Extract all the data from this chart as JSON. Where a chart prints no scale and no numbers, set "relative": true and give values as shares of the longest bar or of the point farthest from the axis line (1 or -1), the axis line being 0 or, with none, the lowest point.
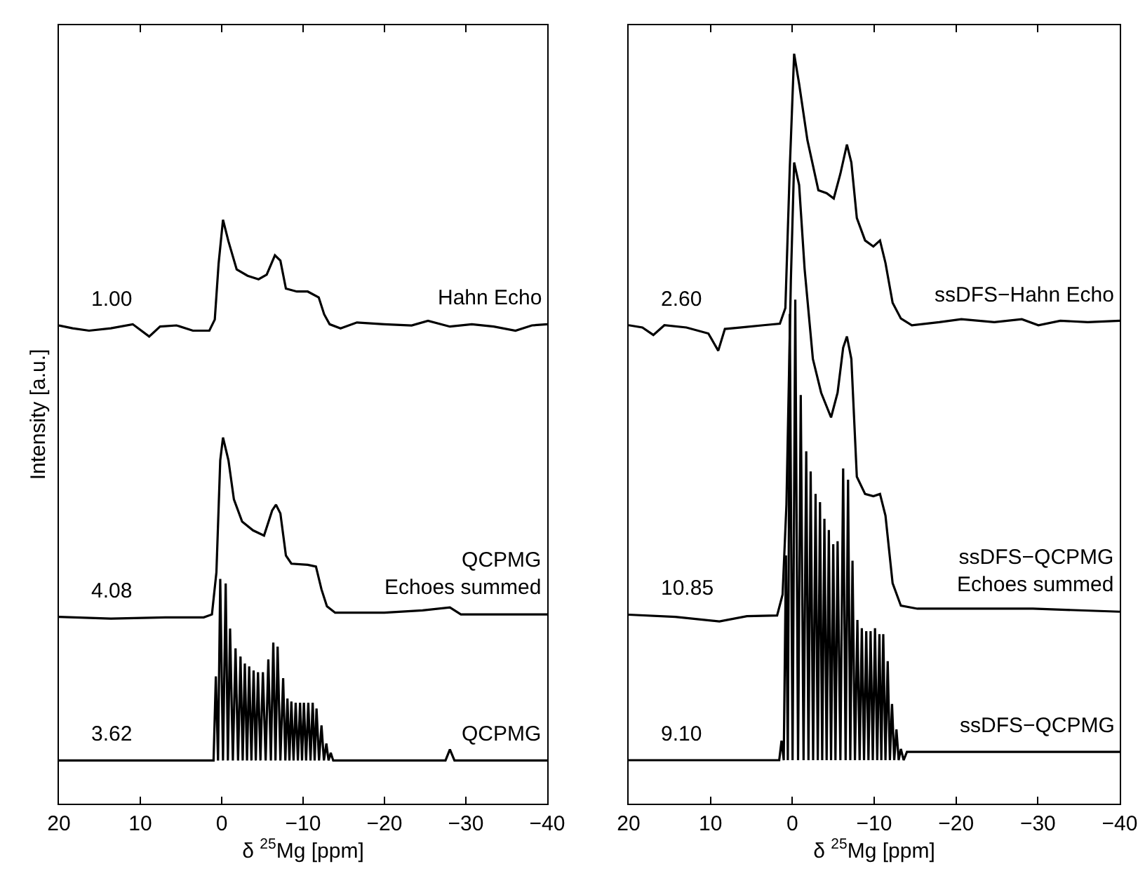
{
  "chart_data": [
    {
      "type": "line",
      "relative": true,
      "xlabel": "δ $^{25}$Mg [ppm]",
      "ylabel": "Intensity [a.u.]",
      "xlim": [
        20,
        -40
      ],
      "xticks": [
        20,
        10,
        0,
        {
          "value": -10,
          "label": "−10"
        },
        {
          "value": -20,
          "label": "−20"
        },
        {
          "value": -30,
          "label": "−30"
        },
        {
          "value": -40,
          "label": "−40"
        }
      ],
      "annotations": [
        "1.00",
        "4.08",
        "3.62"
      ],
      "series": [
        {
          "name": "Hahn Echo",
          "color": "#000000",
          "x": [
            20,
            18.32,
            16.3,
            13.62,
            10.93,
            8.91,
            7.57,
            5.55,
            3.54,
            1.52,
            0.85,
            0.38,
            -0.16,
            -0.83,
            -1.84,
            -3.18,
            -4.53,
            -5.53,
            -6.54,
            -7.21,
            -7.89,
            -9.23,
            -10.57,
            -11.92,
            -12.59,
            -13.26,
            -14.6,
            -16.62,
            -19.98,
            -23.34,
            -25.35,
            -28.04,
            -30.73,
            -33.42,
            -36.1,
            -38.12,
            -40
          ],
          "values": [
            0.819,
            0.814,
            0.81,
            0.814,
            0.821,
            0.8,
            0.817,
            0.819,
            0.81,
            0.81,
            0.829,
            0.925,
            1.0,
            0.963,
            0.915,
            0.904,
            0.898,
            0.906,
            0.939,
            0.93,
            0.882,
            0.877,
            0.877,
            0.867,
            0.838,
            0.821,
            0.814,
            0.824,
            0.821,
            0.819,
            0.827,
            0.817,
            0.821,
            0.817,
            0.81,
            0.819,
            0.821
          ]
        },
        {
          "name": "QCPMG\nEchoes summed",
          "color": "#000000",
          "x": [
            20,
            13.62,
            6.91,
            2.21,
            1.2,
            0.65,
            0.18,
            -0.16,
            -0.83,
            -1.5,
            -2.51,
            -3.85,
            -5.2,
            -6.2,
            -6.67,
            -7.21,
            -7.89,
            -8.56,
            -10.57,
            -11.58,
            -12.26,
            -12.93,
            -13.94,
            -19.98,
            -24.68,
            -28.04,
            -29.39,
            -33.42,
            -40
          ],
          "values": [
            0.32,
            0.317,
            0.319,
            0.319,
            0.324,
            0.396,
            0.588,
            0.627,
            0.588,
            0.521,
            0.483,
            0.468,
            0.459,
            0.502,
            0.512,
            0.497,
            0.425,
            0.411,
            0.409,
            0.406,
            0.367,
            0.338,
            0.327,
            0.327,
            0.331,
            0.336,
            0.324,
            0.324,
            0.324
          ]
        },
        {
          "name": "QCPMG",
          "color": "#000000",
          "x": [
            20,
            1.0,
            0.72,
            0.45,
            0.18,
            -0.16,
            -0.49,
            -0.76,
            -1.03,
            -1.37,
            -1.7,
            -2.01,
            -2.31,
            -2.58,
            -2.84,
            -3.11,
            -3.38,
            -3.65,
            -3.92,
            -4.19,
            -4.46,
            -4.76,
            -5.06,
            -5.4,
            -5.73,
            -6.04,
            -6.34,
            -6.61,
            -6.87,
            -7.21,
            -7.55,
            -7.82,
            -8.08,
            -8.32,
            -8.56,
            -8.83,
            -9.09,
            -9.36,
            -9.63,
            -9.87,
            -10.1,
            -10.37,
            -10.64,
            -10.91,
            -11.18,
            -11.42,
            -11.65,
            -11.96,
            -12.26,
            -12.56,
            -12.86,
            -13.13,
            -13.4,
            -13.7,
            -27.5,
            -28.04,
            -28.6,
            -40
          ],
          "values": [
            0.074,
            0.074,
            0.218,
            0.074,
            0.385,
            0.074,
            0.377,
            0.074,
            0.3,
            0.074,
            0.266,
            0.074,
            0.252,
            0.074,
            0.24,
            0.074,
            0.235,
            0.074,
            0.228,
            0.074,
            0.225,
            0.074,
            0.225,
            0.074,
            0.247,
            0.074,
            0.276,
            0.074,
            0.269,
            0.074,
            0.215,
            0.074,
            0.18,
            0.074,
            0.175,
            0.074,
            0.173,
            0.074,
            0.173,
            0.074,
            0.173,
            0.074,
            0.173,
            0.074,
            0.173,
            0.074,
            0.163,
            0.074,
            0.134,
            0.074,
            0.103,
            0.074,
            0.087,
            0.074,
            0.074,
            0.093,
            0.074,
            0.074
          ]
        }
      ]
    },
    {
      "type": "line",
      "relative": true,
      "xlabel": "δ $^{25}$Mg [ppm]",
      "xlim": [
        20,
        -40
      ],
      "xticks": [
        20,
        10,
        0,
        {
          "value": -10,
          "label": "−10"
        },
        {
          "value": -20,
          "label": "−20"
        },
        {
          "value": -30,
          "label": "−30"
        },
        {
          "value": -40,
          "label": "−40"
        }
      ],
      "annotations": [
        "2.60",
        "10.85",
        "9.10"
      ],
      "series": [
        {
          "name": "ssDFS−Hahn Echo",
          "color": "#000000",
          "x": [
            20,
            18.32,
            16.98,
            15.63,
            12.94,
            10.26,
            9.05,
            8.24,
            6.23,
            3.54,
            1.52,
            0.85,
            0.31,
            -0.22,
            -0.83,
            -1.84,
            -3.18,
            -4.19,
            -5.06,
            -5.87,
            -6.67,
            -7.21,
            -7.88,
            -8.89,
            -9.9,
            -10.71,
            -11.38,
            -12.25,
            -13.26,
            -14.6,
            -17.96,
            -20.65,
            -24.68,
            -28.04,
            -30.06,
            -32.74,
            -36.1,
            -40
          ],
          "values": [
            0.638,
            0.635,
            0.625,
            0.638,
            0.635,
            0.627,
            0.604,
            0.633,
            0.635,
            0.638,
            0.64,
            0.661,
            0.848,
            1.0,
            0.96,
            0.885,
            0.818,
            0.814,
            0.807,
            0.84,
            0.879,
            0.855,
            0.781,
            0.751,
            0.743,
            0.751,
            0.721,
            0.668,
            0.647,
            0.638,
            0.642,
            0.646,
            0.642,
            0.646,
            0.638,
            0.644,
            0.642,
            0.644
          ]
        },
        {
          "name": "ssDFS−QCPMG\nEchoes summed",
          "color": "#000000",
          "x": [
            20,
            14.29,
            8.91,
            5.55,
            1.86,
            1.19,
            0.72,
            0.18,
            -0.22,
            -0.83,
            -1.5,
            -2.51,
            -3.52,
            -4.73,
            -5.53,
            -6.21,
            -6.67,
            -7.21,
            -7.88,
            -8.89,
            -9.9,
            -10.71,
            -11.38,
            -12.25,
            -13.26,
            -15.28,
            -22.67,
            -29.39,
            -40
          ],
          "values": [
            0.252,
            0.249,
            0.243,
            0.25,
            0.251,
            0.279,
            0.399,
            0.698,
            0.855,
            0.825,
            0.713,
            0.593,
            0.548,
            0.515,
            0.548,
            0.608,
            0.623,
            0.593,
            0.436,
            0.413,
            0.41,
            0.413,
            0.384,
            0.294,
            0.264,
            0.26,
            0.26,
            0.26,
            0.256
          ]
        },
        {
          "name": "ssDFS−QCPMG",
          "color": "#000000",
          "x": [
            20,
            1.6,
            1.32,
            1.05,
            0.78,
            0.55,
            0.31,
            -0.03,
            -0.36,
            -0.7,
            -1.03,
            -1.37,
            -1.7,
            -1.97,
            -2.24,
            -2.54,
            -2.84,
            -3.11,
            -3.38,
            -3.65,
            -3.92,
            -4.19,
            -4.46,
            -4.73,
            -5.0,
            -5.27,
            -5.53,
            -5.87,
            -6.21,
            -6.51,
            -6.81,
            -7.08,
            -7.35,
            -7.65,
            -7.95,
            -8.22,
            -8.49,
            -8.76,
            -9.03,
            -9.3,
            -9.56,
            -9.83,
            -10.1,
            -10.37,
            -10.64,
            -10.87,
            -11.11,
            -11.38,
            -11.65,
            -11.92,
            -12.18,
            -12.45,
            -12.72,
            -12.99,
            -13.26,
            -13.6,
            -14,
            -40
          ],
          "values": [
            0.058,
            0.058,
            0.084,
            0.058,
            0.331,
            0.058,
            0.653,
            0.058,
            0.672,
            0.058,
            0.545,
            0.058,
            0.47,
            0.058,
            0.443,
            0.058,
            0.413,
            0.058,
            0.402,
            0.058,
            0.38,
            0.058,
            0.365,
            0.058,
            0.346,
            0.058,
            0.35,
            0.058,
            0.447,
            0.058,
            0.432,
            0.058,
            0.324,
            0.058,
            0.245,
            0.058,
            0.234,
            0.058,
            0.23,
            0.058,
            0.23,
            0.058,
            0.234,
            0.058,
            0.226,
            0.058,
            0.226,
            0.058,
            0.19,
            0.058,
            0.133,
            0.058,
            0.099,
            0.058,
            0.073,
            0.058,
            0.069,
            0.069
          ]
        }
      ]
    }
  ]
}
